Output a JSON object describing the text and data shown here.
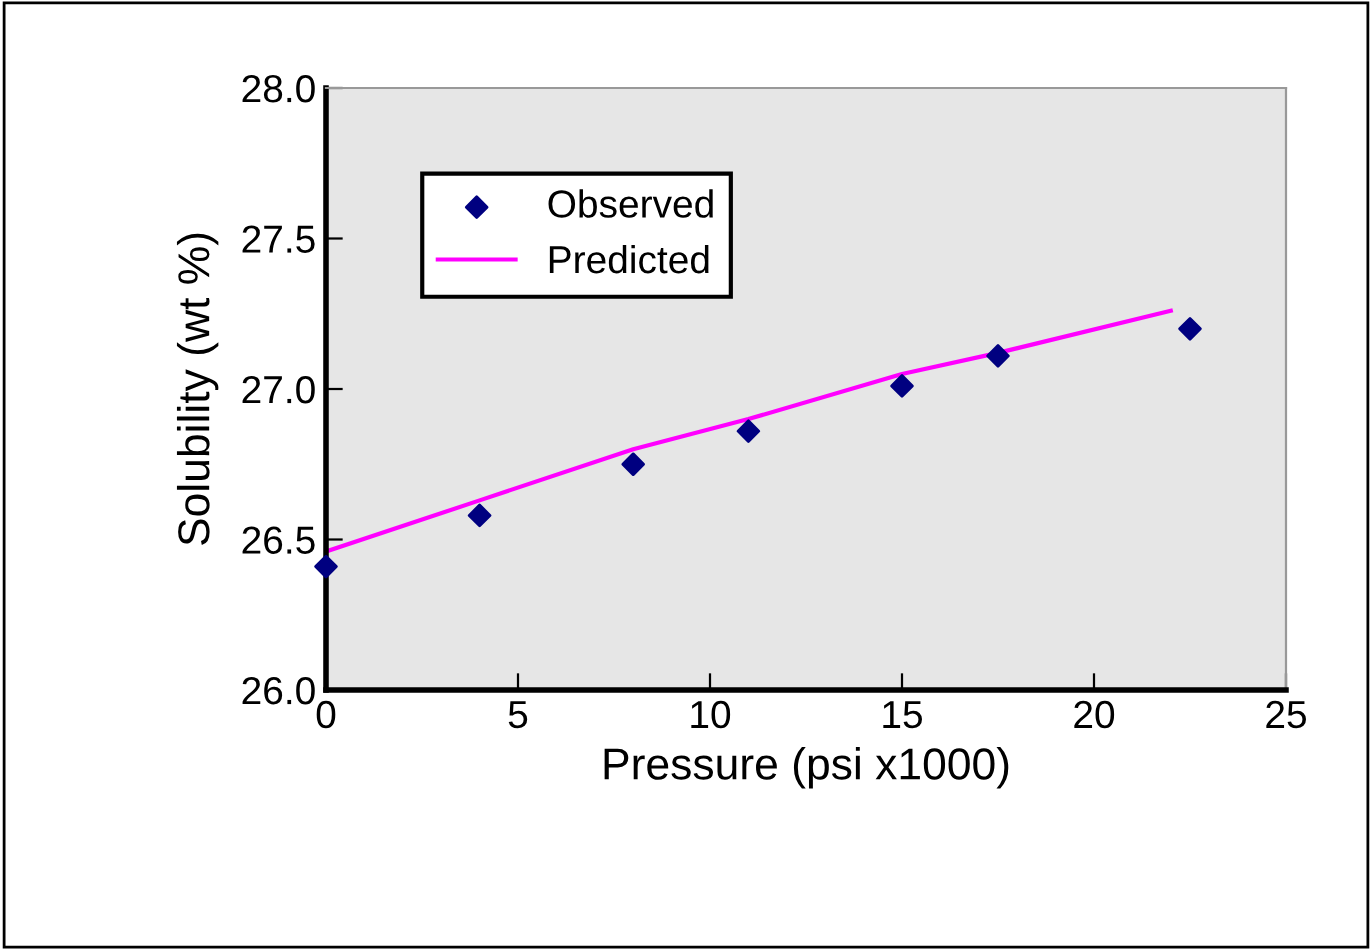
{
  "chart_data": {
    "type": "scatter",
    "xlabel": "Pressure (psi x1000)",
    "ylabel": "Solubility (wt %)",
    "series": [
      {
        "name": "Observed",
        "color": "#000080",
        "marker": "diamond",
        "x": [
          0,
          4,
          8,
          11,
          15,
          17.5,
          22.5
        ],
        "values": [
          26.41,
          26.58,
          26.75,
          26.86,
          27.01,
          27.11,
          27.2
        ]
      },
      {
        "name": "Predicted",
        "type": "line",
        "color": "#ff00ff",
        "marker": "none",
        "x": [
          0,
          4,
          8,
          11,
          15,
          17.5,
          22
        ],
        "values": [
          26.46,
          26.63,
          26.8,
          26.9,
          27.05,
          27.12,
          27.26
        ]
      }
    ],
    "xlim": [
      0,
      25
    ],
    "ylim": [
      26,
      28
    ],
    "xticks": [
      0,
      5,
      10,
      15,
      20,
      25
    ],
    "yticks": [
      {
        "value": 26,
        "label": "26.0"
      },
      {
        "value": 26.5,
        "label": "26.5"
      },
      {
        "value": 27,
        "label": "27.0"
      },
      {
        "value": 27.5,
        "label": "27.5"
      },
      {
        "value": 28,
        "label": "28.0"
      }
    ],
    "grid": false,
    "legend": "top left"
  }
}
